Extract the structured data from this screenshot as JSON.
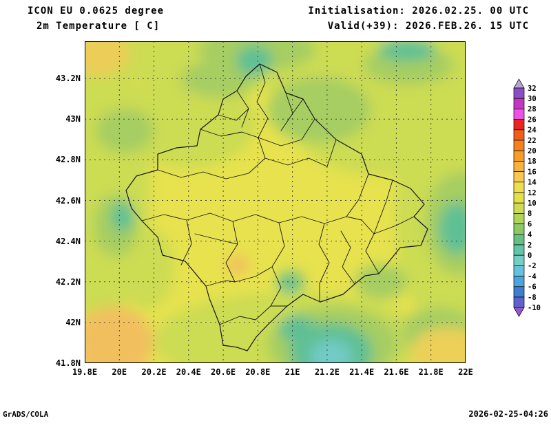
{
  "header": {
    "model_line": "ICON EU 0.0625 degree",
    "variable_line": "2m Temperature [ C]",
    "init_line": "Initialisation: 2026.02.25. 00 UTC",
    "valid_line": "Valid(+39): 2026.FEB.26. 15 UTC"
  },
  "footer": {
    "left": "GrADS/COLA",
    "right": "2026-02-25-04:26"
  },
  "map": {
    "lat_ticks": [
      "43.2N",
      "43N",
      "42.8N",
      "42.6N",
      "42.4N",
      "42.2N",
      "42N",
      "41.8N"
    ],
    "lon_ticks": [
      "19.8E",
      "20E",
      "20.2E",
      "20.4E",
      "20.6E",
      "20.8E",
      "21E",
      "21.2E",
      "21.4E",
      "21.6E",
      "21.8E",
      "22E"
    ],
    "units": "C",
    "region": "Kosovo"
  },
  "colorbar": {
    "labels": [
      "32",
      "30",
      "28",
      "26",
      "24",
      "22",
      "20",
      "18",
      "16",
      "14",
      "12",
      "10",
      "8",
      "6",
      "4",
      "2",
      "0",
      "-2",
      "-4",
      "-6",
      "-8",
      "-10"
    ],
    "colors_top_to_bottom": [
      "#b7a4cf",
      "#8b4fc3",
      "#c236c2",
      "#ef50e8",
      "#e8251f",
      "#f25c1c",
      "#f5801e",
      "#f79c28",
      "#f9b43c",
      "#fac850",
      "#eede4e",
      "#e4e04b",
      "#cfdc51",
      "#b1d45a",
      "#8cc963",
      "#66c083",
      "#62c4a8",
      "#74cfc6",
      "#66c2dc",
      "#4da3dc",
      "#3f7cd2",
      "#5f62cc",
      "#9257c8"
    ],
    "field_base_color": "#e7e24e"
  }
}
